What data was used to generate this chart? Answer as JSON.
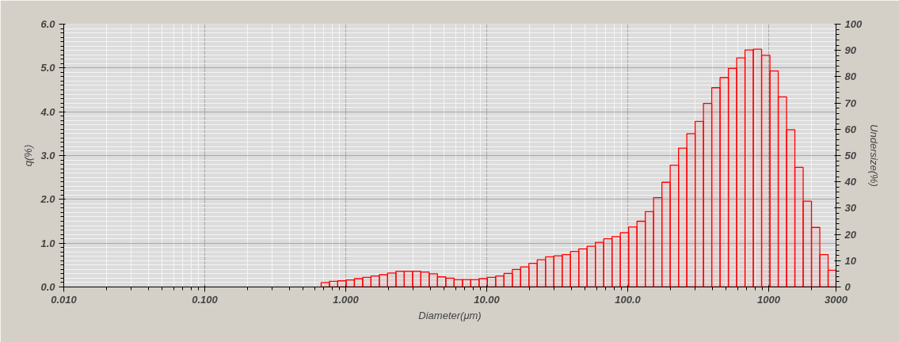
{
  "chart_data": {
    "type": "histogram",
    "xlabel": "Diameter(μm)",
    "ylabel": "q(%)",
    "y2label": "Undersize(%)",
    "log": "x",
    "grid": true,
    "color": "#ff0000",
    "bins": [
      0.669,
      0.766,
      0.877,
      1.005,
      1.151,
      1.318,
      1.51,
      1.729,
      1.981,
      2.269,
      2.599,
      2.976,
      3.409,
      3.905,
      4.472,
      5.122,
      5.867,
      6.72,
      7.697,
      8.816,
      10.097,
      11.565,
      13.246,
      15.172,
      17.377,
      19.904,
      22.797,
      26.111,
      29.907,
      34.255,
      39.234,
      44.938,
      51.471,
      58.953,
      67.523,
      77.339,
      88.583,
      101.46,
      116.21,
      133.103,
      152.453,
      174.616,
      200.0,
      229.075,
      262.376,
      300.518,
      344.206,
      394.244,
      451.556,
      517.2,
      592.387,
      678.504,
      777.141,
      890.116,
      1019.515,
      1167.725,
      1337.481,
      1531.914,
      1754.613,
      2009.687,
      2301.841,
      2636.467,
      3000
    ],
    "values": [
      0.1,
      0.13,
      0.14,
      0.16,
      0.19,
      0.22,
      0.25,
      0.28,
      0.32,
      0.36,
      0.36,
      0.36,
      0.34,
      0.3,
      0.23,
      0.2,
      0.17,
      0.17,
      0.17,
      0.19,
      0.22,
      0.25,
      0.31,
      0.4,
      0.46,
      0.54,
      0.62,
      0.69,
      0.71,
      0.74,
      0.81,
      0.87,
      0.93,
      1.02,
      1.1,
      1.15,
      1.24,
      1.37,
      1.5,
      1.72,
      2.04,
      2.39,
      2.78,
      3.17,
      3.5,
      3.78,
      4.19,
      4.55,
      4.78,
      4.99,
      5.23,
      5.41,
      5.43,
      5.29,
      4.93,
      4.34,
      3.59,
      2.73,
      1.96,
      1.36,
      0.74,
      0.38
    ],
    "xlim": [
      0.01,
      3000
    ],
    "xticks": [
      {
        "value": 0.01,
        "label": "0.010"
      },
      {
        "value": 0.1,
        "label": "0.100"
      },
      {
        "value": 1,
        "label": "1.000"
      },
      {
        "value": 10,
        "label": "10.00"
      },
      {
        "value": 100,
        "label": "100.0"
      },
      1000,
      3000
    ],
    "ylim": [
      0,
      6
    ],
    "yticks": [
      {
        "value": 0,
        "label": "0.0"
      },
      {
        "value": 1,
        "label": "1.0"
      },
      {
        "value": 2,
        "label": "2.0"
      },
      {
        "value": 3,
        "label": "3.0"
      },
      {
        "value": 4,
        "label": "4.0"
      },
      {
        "value": 5,
        "label": "5.0"
      },
      {
        "value": 6,
        "label": "6.0"
      }
    ],
    "y2lim": [
      0,
      100
    ],
    "y2ticks": [
      0,
      10,
      20,
      30,
      40,
      50,
      60,
      70,
      80,
      90,
      100
    ]
  }
}
